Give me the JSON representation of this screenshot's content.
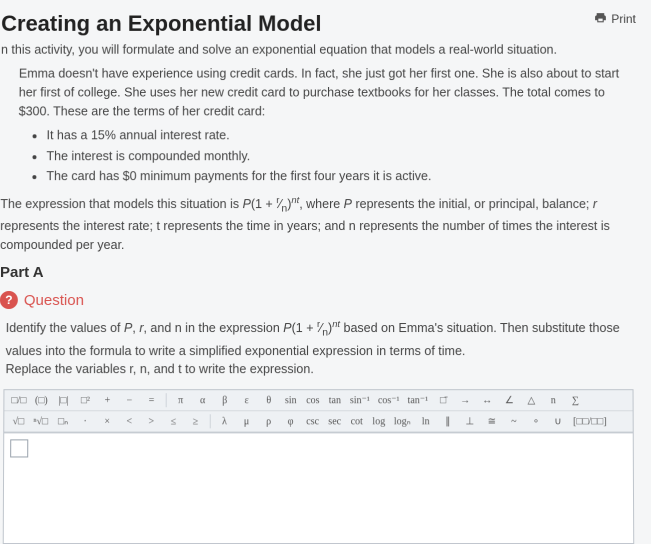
{
  "header": {
    "title": "Creating an Exponential Model",
    "print_label": "Print"
  },
  "intro": "n this activity, you will formulate and solve an exponential equation that models a real-world situation.",
  "para1": "Emma doesn't have experience using credit cards. In fact, she just got her first one. She is also about to start her first of college. She uses her new credit card to purchase textbooks for her classes. The total comes to $300. These are the terms of her credit card:",
  "terms": [
    "It has a 15% annual interest rate.",
    "The interest is compounded monthly.",
    "The card has $0 minimum payments for the first four years it is active."
  ],
  "formula_pre": "The expression that models this situation is ",
  "formula_mid": ", where ",
  "formula_post": " represents the initial, or principal, balance; ",
  "formula_tail": " represents the interest rate; t represents the time in years; and n represents the number of times the interest is compounded per year.",
  "part_label": "Part A",
  "question_badge": "?",
  "question_label": "Question",
  "q_text_1": "Identify the values of ",
  "q_text_2": ", and n in the expression ",
  "q_text_3": " based on Emma's situation. Then substitute those values into the formula to write a simplified exponential expression in terms of time.",
  "q_text_4": "Replace the variables r, n, and t to write the expression.",
  "toolbar": {
    "row1": [
      "□/□",
      "(□)",
      "|□|",
      "□²",
      "+",
      "−",
      "=",
      "",
      "π",
      "α",
      "β",
      "ε",
      "θ",
      "sin",
      "cos",
      "tan",
      "sin⁻¹",
      "cos⁻¹",
      "tan⁻¹",
      "□̄",
      "→",
      "↔",
      "∠",
      "△",
      "n",
      "∑"
    ],
    "row2": [
      "√□",
      "ⁿ√□",
      "□ₙ",
      "·",
      "×",
      "<",
      ">",
      "≤",
      "≥",
      "",
      "λ",
      "μ",
      "ρ",
      "φ",
      "csc",
      "sec",
      "cot",
      "log",
      "logₙ",
      "ln",
      "∥",
      "⊥",
      "≅",
      "~",
      "∘",
      "∪",
      "[□□/□□]"
    ]
  }
}
